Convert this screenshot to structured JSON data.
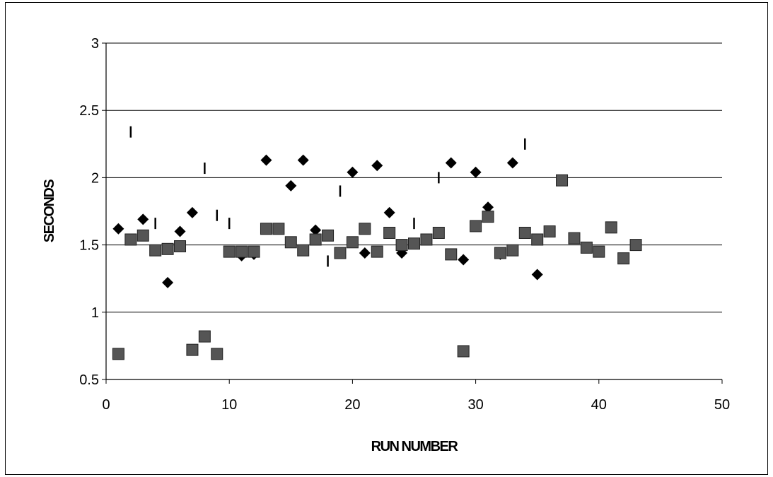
{
  "chart_data": {
    "type": "scatter",
    "title": "",
    "xlabel": "RUN NUMBER",
    "ylabel": "SECONDS",
    "xlim": [
      0,
      50
    ],
    "ylim": [
      0.5,
      3
    ],
    "xticks": [
      "0",
      "10",
      "20",
      "30",
      "40",
      "50"
    ],
    "yticks": [
      "0.5",
      "1",
      "1.5",
      "2",
      "2.5",
      "3"
    ],
    "grid": "horizontal",
    "legend": "none",
    "colors": {
      "diamond": "#000000",
      "square": "#555555",
      "dash": "#000000",
      "frame": "#000000"
    },
    "series": [
      {
        "marker": "diamond",
        "x": [
          1,
          3,
          5,
          6,
          7,
          11,
          12,
          13,
          14,
          15,
          16,
          17,
          20,
          21,
          22,
          23,
          24,
          28,
          29,
          30,
          31,
          32,
          33,
          35
        ],
        "y": [
          1.62,
          1.69,
          1.22,
          1.6,
          1.74,
          1.42,
          1.43,
          2.13,
          1.62,
          1.94,
          2.13,
          1.61,
          2.04,
          1.44,
          2.09,
          1.74,
          1.44,
          2.11,
          1.39,
          2.04,
          1.78,
          1.43,
          2.11,
          1.28
        ]
      },
      {
        "marker": "square",
        "x": [
          1,
          2,
          3,
          4,
          5,
          6,
          7,
          8,
          9,
          10,
          11,
          12,
          13,
          14,
          15,
          16,
          17,
          18,
          19,
          20,
          21,
          22,
          23,
          24,
          25,
          26,
          27,
          28,
          29,
          30,
          31,
          32,
          33,
          34,
          35,
          36,
          37,
          38,
          39,
          40,
          41,
          42,
          43
        ],
        "y": [
          0.69,
          1.54,
          1.57,
          1.46,
          1.47,
          1.49,
          0.72,
          0.82,
          0.69,
          1.45,
          1.45,
          1.45,
          1.62,
          1.62,
          1.52,
          1.46,
          1.54,
          1.57,
          1.44,
          1.52,
          1.62,
          1.45,
          1.59,
          1.5,
          1.51,
          1.54,
          1.59,
          1.43,
          0.71,
          1.64,
          1.71,
          1.44,
          1.46,
          1.59,
          1.54,
          1.6,
          1.98,
          1.55,
          1.48,
          1.45,
          1.63,
          1.4,
          1.5
        ]
      },
      {
        "marker": "dash",
        "x": [
          2,
          4,
          8,
          9,
          10,
          18,
          19,
          25,
          27,
          34
        ],
        "y": [
          2.34,
          1.66,
          2.07,
          1.72,
          1.66,
          1.38,
          1.9,
          1.66,
          2.0,
          2.25
        ]
      }
    ]
  }
}
